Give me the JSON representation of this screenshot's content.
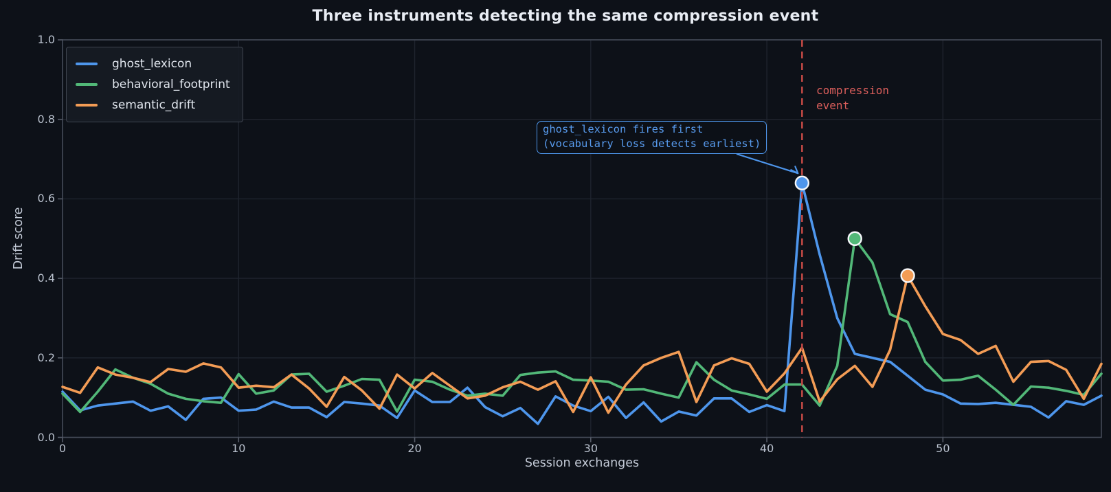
{
  "title": "Three instruments detecting the same compression event",
  "colors": {
    "background": "#0d1118",
    "grid": "#1f242e",
    "spine": "#434956",
    "tick": "#565c68",
    "event_line": "#c04844",
    "event_text": "#dd5f5c",
    "annotation_blue": "#4e96ec"
  },
  "chart_data": {
    "type": "line",
    "title": "Three instruments detecting the same compression event",
    "xlabel": "Session exchanges",
    "ylabel": "Drift score",
    "xlim": [
      0,
      59
    ],
    "ylim": [
      0.0,
      1.0
    ],
    "grid": true,
    "legend_position": "upper-left",
    "x_ticks": [
      {
        "label": "0",
        "value": 0
      },
      {
        "label": "10",
        "value": 10
      },
      {
        "label": "20",
        "value": 20
      },
      {
        "label": "30",
        "value": 30
      },
      {
        "label": "40",
        "value": 40
      },
      {
        "label": "50",
        "value": 50
      }
    ],
    "y_ticks": [
      {
        "label": "0.0",
        "value": 0.0
      },
      {
        "label": "0.2",
        "value": 0.2
      },
      {
        "label": "0.4",
        "value": 0.4
      },
      {
        "label": "0.6",
        "value": 0.6
      },
      {
        "label": "0.8",
        "value": 0.8
      },
      {
        "label": "1.0",
        "value": 1.0
      }
    ],
    "series": [
      {
        "name": "ghost_lexicon",
        "color": "#4e96ec",
        "values": [
          0.115,
          0.068,
          0.08,
          0.085,
          0.09,
          0.067,
          0.078,
          0.044,
          0.097,
          0.1,
          0.067,
          0.07,
          0.09,
          0.075,
          0.075,
          0.051,
          0.089,
          0.085,
          0.08,
          0.049,
          0.118,
          0.089,
          0.089,
          0.125,
          0.076,
          0.053,
          0.074,
          0.034,
          0.103,
          0.08,
          0.066,
          0.102,
          0.049,
          0.088,
          0.04,
          0.065,
          0.055,
          0.098,
          0.098,
          0.064,
          0.081,
          0.066,
          0.64,
          0.46,
          0.3,
          0.21,
          0.2,
          0.19,
          0.155,
          0.12,
          0.108,
          0.085,
          0.084,
          0.087,
          0.082,
          0.077,
          0.05,
          0.091,
          0.082,
          0.105
        ]
      },
      {
        "name": "behavioral_footprint",
        "color": "#52b878",
        "values": [
          0.11,
          0.064,
          0.115,
          0.171,
          0.15,
          0.135,
          0.11,
          0.097,
          0.091,
          0.087,
          0.159,
          0.11,
          0.118,
          0.158,
          0.16,
          0.115,
          0.13,
          0.147,
          0.145,
          0.065,
          0.145,
          0.14,
          0.12,
          0.105,
          0.11,
          0.105,
          0.157,
          0.163,
          0.166,
          0.145,
          0.143,
          0.14,
          0.12,
          0.121,
          0.11,
          0.1,
          0.189,
          0.145,
          0.118,
          0.108,
          0.097,
          0.133,
          0.133,
          0.08,
          0.18,
          0.5,
          0.44,
          0.31,
          0.29,
          0.19,
          0.143,
          0.145,
          0.155,
          0.12,
          0.082,
          0.128,
          0.125,
          0.117,
          0.107,
          0.16
        ]
      },
      {
        "name": "semantic_drift",
        "color": "#f39c55",
        "values": [
          0.127,
          0.112,
          0.176,
          0.158,
          0.15,
          0.139,
          0.172,
          0.165,
          0.186,
          0.176,
          0.125,
          0.13,
          0.126,
          0.158,
          0.123,
          0.077,
          0.152,
          0.118,
          0.072,
          0.158,
          0.123,
          0.162,
          0.13,
          0.098,
          0.105,
          0.126,
          0.14,
          0.12,
          0.141,
          0.064,
          0.151,
          0.062,
          0.133,
          0.181,
          0.2,
          0.215,
          0.089,
          0.181,
          0.199,
          0.185,
          0.115,
          0.161,
          0.225,
          0.09,
          0.146,
          0.18,
          0.127,
          0.22,
          0.407,
          0.33,
          0.26,
          0.245,
          0.21,
          0.23,
          0.14,
          0.19,
          0.192,
          0.17,
          0.097,
          0.185
        ]
      }
    ],
    "markers": [
      {
        "series": "ghost_lexicon",
        "x": 42,
        "y": 0.64
      },
      {
        "series": "behavioral_footprint",
        "x": 45,
        "y": 0.5
      },
      {
        "series": "semantic_drift",
        "x": 48,
        "y": 0.407
      }
    ],
    "event_line": {
      "x": 42,
      "label": "compression\nevent"
    },
    "annotation": {
      "line1": "ghost_lexicon fires first",
      "line2": "(vocabulary loss detects earliest)",
      "target": {
        "x": 42,
        "y": 0.64
      }
    }
  }
}
